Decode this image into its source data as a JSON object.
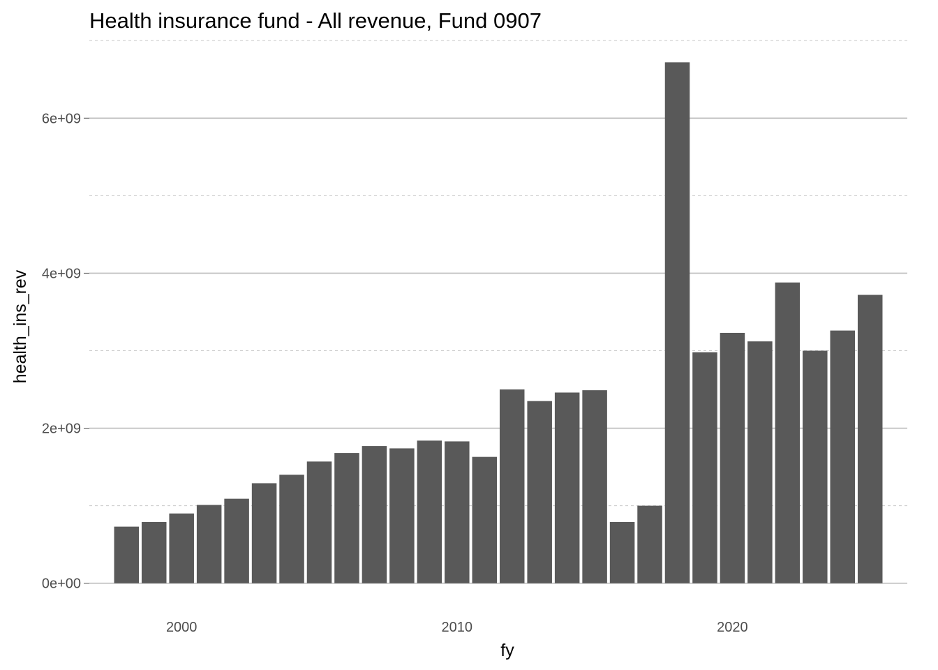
{
  "chart_data": {
    "type": "bar",
    "title": "Health insurance fund - All revenue, Fund 0907",
    "xlabel": "fy",
    "ylabel": "health_ins_rev",
    "bar_color": "#595959",
    "x": [
      1998,
      1999,
      2000,
      2001,
      2002,
      2003,
      2004,
      2005,
      2006,
      2007,
      2008,
      2009,
      2010,
      2011,
      2012,
      2013,
      2014,
      2015,
      2016,
      2017,
      2018,
      2019,
      2020,
      2021,
      2022,
      2023,
      2024,
      2025
    ],
    "values": [
      730000000,
      790000000,
      900000000,
      1010000000,
      1090000000,
      1290000000,
      1400000000,
      1570000000,
      1680000000,
      1770000000,
      1740000000,
      1840000000,
      1830000000,
      1630000000,
      2500000000,
      2350000000,
      2460000000,
      2490000000,
      790000000,
      1000000000,
      6720000000,
      2980000000,
      3230000000,
      3120000000,
      3880000000,
      3000000000,
      3260000000,
      3720000000
    ],
    "xlim": [
      1996.65,
      2026.35
    ],
    "ylim": [
      -336000000,
      7056000000
    ],
    "x_ticks": [
      2000,
      2010,
      2020
    ],
    "x_tick_labels": [
      "2000",
      "2010",
      "2020"
    ],
    "y_ticks": [
      0,
      2000000000,
      4000000000,
      6000000000
    ],
    "y_tick_labels": [
      "0e+00",
      "2e+09",
      "4e+09",
      "6e+09"
    ],
    "y_minor_ticks": [
      1000000000,
      3000000000,
      5000000000,
      7000000000
    ],
    "grid": true,
    "legend": "none"
  }
}
